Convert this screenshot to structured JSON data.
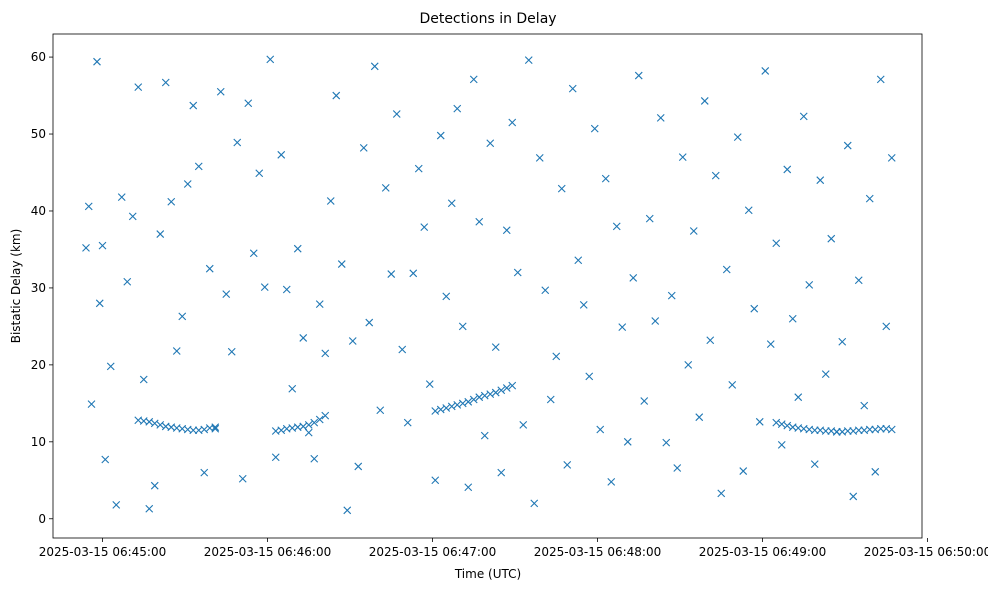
{
  "chart_data": {
    "type": "scatter",
    "title": "Detections in Delay",
    "xlabel": "Time (UTC)",
    "ylabel": "Bistatic Delay (km)",
    "marker": "x",
    "color": "#1f77b4",
    "grid": false,
    "xlim": [
      "2025-03-15 06:44:42",
      "2025-03-15 06:49:58"
    ],
    "ylim": [
      -2.5,
      63
    ],
    "x_ticks": [
      "2025-03-15 06:45:00",
      "2025-03-15 06:46:00",
      "2025-03-15 06:47:00",
      "2025-03-15 06:48:00",
      "2025-03-15 06:49:00",
      "2025-03-15 06:50:00"
    ],
    "y_ticks": [
      0,
      10,
      20,
      30,
      40,
      50,
      60
    ],
    "series": [
      {
        "x": [
          "2025-03-15 06:44:54",
          "2025-03-15 06:44:55",
          "2025-03-15 06:44:56",
          "2025-03-15 06:44:58",
          "2025-03-15 06:44:59",
          "2025-03-15 06:45:00",
          "2025-03-15 06:45:01",
          "2025-03-15 06:45:03",
          "2025-03-15 06:45:05",
          "2025-03-15 06:45:07",
          "2025-03-15 06:45:09",
          "2025-03-15 06:45:11",
          "2025-03-15 06:45:13",
          "2025-03-15 06:45:15",
          "2025-03-15 06:45:17",
          "2025-03-15 06:45:19",
          "2025-03-15 06:45:21",
          "2025-03-15 06:45:23",
          "2025-03-15 06:45:25",
          "2025-03-15 06:45:27",
          "2025-03-15 06:45:29",
          "2025-03-15 06:45:31",
          "2025-03-15 06:45:33",
          "2025-03-15 06:45:35",
          "2025-03-15 06:45:37",
          "2025-03-15 06:45:39",
          "2025-03-15 06:45:41",
          "2025-03-15 06:45:43",
          "2025-03-15 06:45:45",
          "2025-03-15 06:45:47",
          "2025-03-15 06:45:49",
          "2025-03-15 06:45:51",
          "2025-03-15 06:45:53",
          "2025-03-15 06:45:55",
          "2025-03-15 06:45:57",
          "2025-03-15 06:45:59",
          "2025-03-15 06:46:01",
          "2025-03-15 06:46:03",
          "2025-03-15 06:46:05",
          "2025-03-15 06:46:07",
          "2025-03-15 06:46:09",
          "2025-03-15 06:46:11",
          "2025-03-15 06:46:13",
          "2025-03-15 06:46:15",
          "2025-03-15 06:46:17",
          "2025-03-15 06:46:19",
          "2025-03-15 06:46:21",
          "2025-03-15 06:46:23",
          "2025-03-15 06:46:25",
          "2025-03-15 06:46:27",
          "2025-03-15 06:46:29",
          "2025-03-15 06:46:31",
          "2025-03-15 06:46:33",
          "2025-03-15 06:46:35",
          "2025-03-15 06:46:37",
          "2025-03-15 06:46:39",
          "2025-03-15 06:46:41",
          "2025-03-15 06:46:43",
          "2025-03-15 06:46:45",
          "2025-03-15 06:46:47",
          "2025-03-15 06:46:49",
          "2025-03-15 06:46:51",
          "2025-03-15 06:46:53",
          "2025-03-15 06:46:55",
          "2025-03-15 06:46:57",
          "2025-03-15 06:46:59",
          "2025-03-15 06:47:01",
          "2025-03-15 06:47:03",
          "2025-03-15 06:47:05",
          "2025-03-15 06:47:07",
          "2025-03-15 06:47:09",
          "2025-03-15 06:47:11",
          "2025-03-15 06:47:13",
          "2025-03-15 06:47:15",
          "2025-03-15 06:47:17",
          "2025-03-15 06:47:19",
          "2025-03-15 06:47:21",
          "2025-03-15 06:47:23",
          "2025-03-15 06:47:25",
          "2025-03-15 06:47:27",
          "2025-03-15 06:47:29",
          "2025-03-15 06:47:31",
          "2025-03-15 06:47:33",
          "2025-03-15 06:47:35",
          "2025-03-15 06:47:37",
          "2025-03-15 06:47:39",
          "2025-03-15 06:47:41",
          "2025-03-15 06:47:43",
          "2025-03-15 06:47:45",
          "2025-03-15 06:47:47",
          "2025-03-15 06:47:49",
          "2025-03-15 06:47:51",
          "2025-03-15 06:47:53",
          "2025-03-15 06:47:55",
          "2025-03-15 06:47:57",
          "2025-03-15 06:47:59",
          "2025-03-15 06:48:01",
          "2025-03-15 06:48:03",
          "2025-03-15 06:48:05",
          "2025-03-15 06:48:07",
          "2025-03-15 06:48:09",
          "2025-03-15 06:48:11",
          "2025-03-15 06:48:13",
          "2025-03-15 06:48:15",
          "2025-03-15 06:48:17",
          "2025-03-15 06:48:19",
          "2025-03-15 06:48:21",
          "2025-03-15 06:48:23",
          "2025-03-15 06:48:25",
          "2025-03-15 06:48:27",
          "2025-03-15 06:48:29",
          "2025-03-15 06:48:31",
          "2025-03-15 06:48:33",
          "2025-03-15 06:48:35",
          "2025-03-15 06:48:37",
          "2025-03-15 06:48:39",
          "2025-03-15 06:48:41",
          "2025-03-15 06:48:43",
          "2025-03-15 06:48:45",
          "2025-03-15 06:48:47",
          "2025-03-15 06:48:49",
          "2025-03-15 06:48:51",
          "2025-03-15 06:48:53",
          "2025-03-15 06:48:55",
          "2025-03-15 06:48:57",
          "2025-03-15 06:48:59",
          "2025-03-15 06:49:01",
          "2025-03-15 06:49:03",
          "2025-03-15 06:49:05",
          "2025-03-15 06:49:07",
          "2025-03-15 06:49:09",
          "2025-03-15 06:49:11",
          "2025-03-15 06:49:13",
          "2025-03-15 06:49:15",
          "2025-03-15 06:49:17",
          "2025-03-15 06:49:19",
          "2025-03-15 06:49:21",
          "2025-03-15 06:49:23",
          "2025-03-15 06:49:25",
          "2025-03-15 06:49:27",
          "2025-03-15 06:49:29",
          "2025-03-15 06:49:31",
          "2025-03-15 06:49:33",
          "2025-03-15 06:49:35",
          "2025-03-15 06:49:37",
          "2025-03-15 06:49:39",
          "2025-03-15 06:49:41",
          "2025-03-15 06:49:43",
          "2025-03-15 06:49:45",
          "2025-03-15 06:49:47"
        ],
        "y": [
          35.2,
          40.6,
          14.9,
          59.4,
          28.0,
          35.5,
          7.7,
          19.8,
          1.8,
          41.8,
          30.8,
          39.3,
          56.1,
          18.1,
          1.3,
          4.3,
          37.0,
          56.7,
          41.2,
          21.8,
          26.3,
          43.5,
          53.7,
          45.8,
          6.0,
          32.5,
          11.7,
          55.5,
          29.2,
          21.7,
          48.9,
          5.2,
          54.0,
          34.5,
          44.9,
          30.1,
          59.7,
          8.0,
          47.3,
          29.8,
          16.9,
          35.1,
          23.5,
          11.2,
          7.8,
          27.9,
          21.5,
          41.3,
          55.0,
          33.1,
          1.1,
          23.1,
          6.8,
          48.2,
          25.5,
          58.8,
          14.1,
          43.0,
          31.8,
          52.6,
          22.0,
          12.5,
          31.9,
          45.5,
          37.9,
          17.5,
          5.0,
          49.8,
          28.9,
          41.0,
          53.3,
          25.0,
          4.1,
          57.1,
          38.6,
          10.8,
          48.8,
          22.3,
          6.0,
          37.5,
          51.5,
          32.0,
          12.2,
          59.6,
          2.0,
          46.9,
          29.7,
          15.5,
          21.1,
          42.9,
          7.0,
          55.9,
          33.6,
          27.8,
          18.5,
          50.7,
          11.6,
          44.2,
          4.8,
          38.0,
          24.9,
          10.0,
          31.3,
          57.6,
          15.3,
          39.0,
          25.7,
          52.1,
          9.9,
          29.0,
          6.6,
          47.0,
          20.0,
          37.4,
          13.2,
          54.3,
          23.2,
          44.6,
          3.3,
          32.4,
          17.4,
          49.6,
          6.2,
          40.1,
          27.3,
          12.6,
          58.2,
          22.7,
          35.8,
          9.6,
          45.4,
          26.0,
          15.8,
          52.3,
          30.4,
          7.1,
          44.0,
          18.8,
          36.4,
          11.3,
          23.0,
          48.5,
          2.9,
          31.0,
          14.7,
          41.6,
          6.1,
          57.1,
          25.0,
          46.9
        ]
      },
      {
        "x": [
          "2025-03-15 06:45:13",
          "2025-03-15 06:45:15",
          "2025-03-15 06:45:17",
          "2025-03-15 06:45:19",
          "2025-03-15 06:45:21",
          "2025-03-15 06:45:23",
          "2025-03-15 06:45:25",
          "2025-03-15 06:45:27",
          "2025-03-15 06:45:29",
          "2025-03-15 06:45:31",
          "2025-03-15 06:45:33",
          "2025-03-15 06:45:35",
          "2025-03-15 06:45:37",
          "2025-03-15 06:45:39",
          "2025-03-15 06:45:41",
          "2025-03-15 06:46:03",
          "2025-03-15 06:46:05",
          "2025-03-15 06:46:07",
          "2025-03-15 06:46:09",
          "2025-03-15 06:46:11",
          "2025-03-15 06:46:13",
          "2025-03-15 06:46:15",
          "2025-03-15 06:46:17",
          "2025-03-15 06:46:19",
          "2025-03-15 06:46:21",
          "2025-03-15 06:47:01",
          "2025-03-15 06:47:03",
          "2025-03-15 06:47:05",
          "2025-03-15 06:47:07",
          "2025-03-15 06:47:09",
          "2025-03-15 06:47:11",
          "2025-03-15 06:47:13",
          "2025-03-15 06:47:15",
          "2025-03-15 06:47:17",
          "2025-03-15 06:47:19",
          "2025-03-15 06:47:21",
          "2025-03-15 06:47:23",
          "2025-03-15 06:47:25",
          "2025-03-15 06:47:27",
          "2025-03-15 06:47:29",
          "2025-03-15 06:49:05",
          "2025-03-15 06:49:07",
          "2025-03-15 06:49:09",
          "2025-03-15 06:49:11",
          "2025-03-15 06:49:13",
          "2025-03-15 06:49:15",
          "2025-03-15 06:49:17",
          "2025-03-15 06:49:19",
          "2025-03-15 06:49:21",
          "2025-03-15 06:49:23",
          "2025-03-15 06:49:25",
          "2025-03-15 06:49:27",
          "2025-03-15 06:49:29",
          "2025-03-15 06:49:31",
          "2025-03-15 06:49:33",
          "2025-03-15 06:49:35",
          "2025-03-15 06:49:37",
          "2025-03-15 06:49:39",
          "2025-03-15 06:49:41",
          "2025-03-15 06:49:43",
          "2025-03-15 06:49:45",
          "2025-03-15 06:49:47"
        ],
        "y": [
          12.8,
          12.7,
          12.6,
          12.4,
          12.2,
          12.0,
          11.9,
          11.8,
          11.7,
          11.6,
          11.5,
          11.5,
          11.6,
          11.8,
          11.9,
          11.4,
          11.5,
          11.7,
          11.8,
          11.9,
          12.0,
          12.2,
          12.5,
          12.9,
          13.4,
          14.0,
          14.2,
          14.4,
          14.6,
          14.8,
          15.0,
          15.2,
          15.5,
          15.8,
          16.0,
          16.2,
          16.4,
          16.7,
          17.0,
          17.3,
          12.5,
          12.3,
          12.1,
          11.9,
          11.8,
          11.7,
          11.6,
          11.5,
          11.5,
          11.4,
          11.4,
          11.3,
          11.3,
          11.4,
          11.4,
          11.5,
          11.5,
          11.6,
          11.6,
          11.7,
          11.7,
          11.6
        ]
      }
    ]
  }
}
